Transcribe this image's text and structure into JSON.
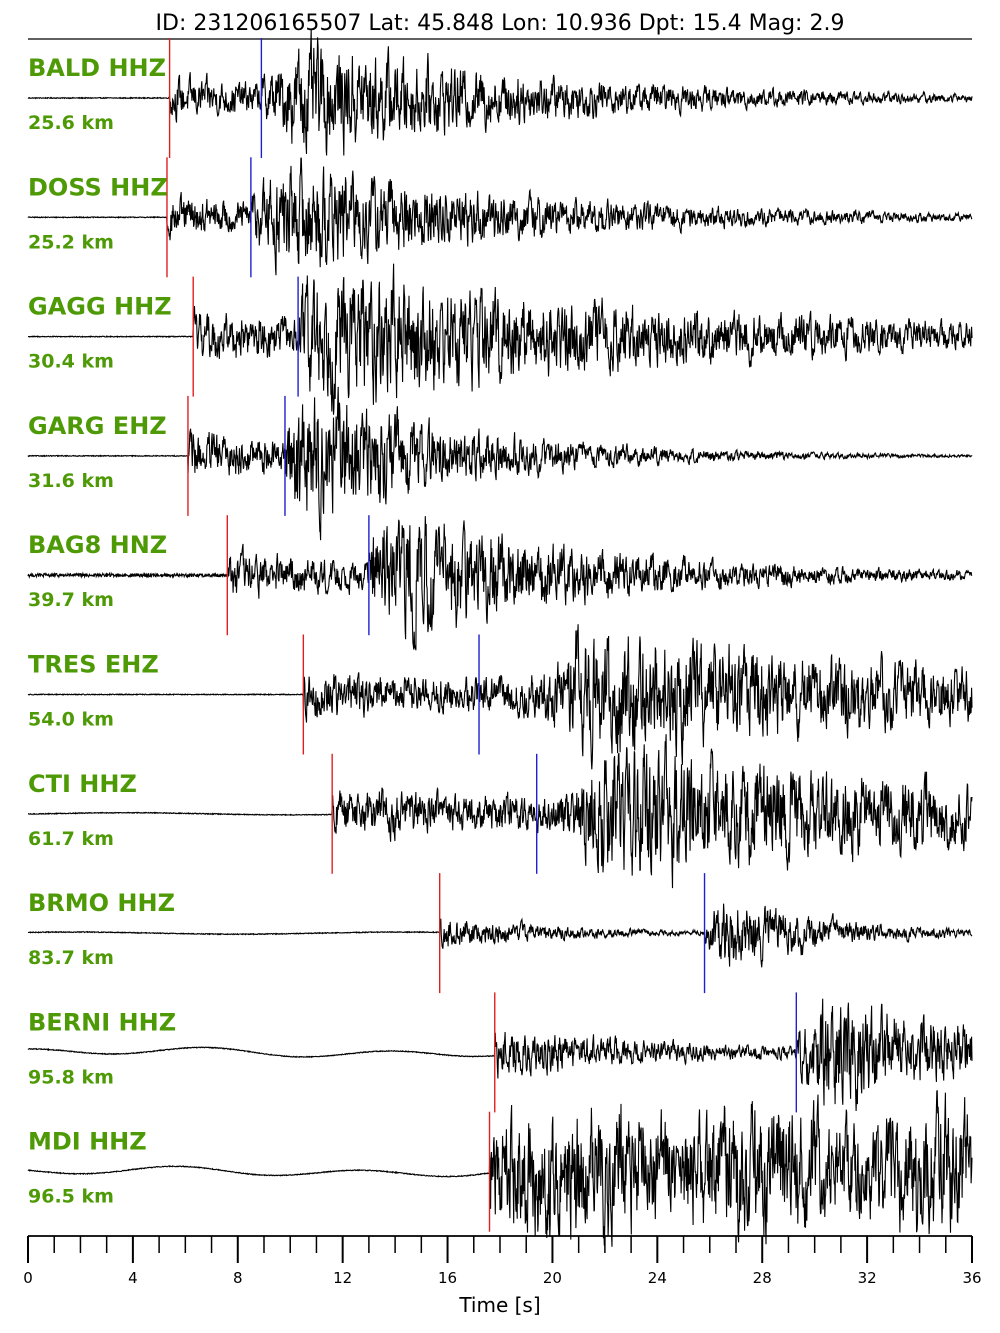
{
  "chart_data": {
    "type": "line",
    "title": "ID: 231206165507 Lat:  45.848 Lon:  10.936 Dpt:    15.4 Mag:   2.9",
    "xlabel": "Time [s]",
    "ylabel": "",
    "xlim": [
      0,
      36
    ],
    "x_ticks": [
      "0",
      "4",
      "8",
      "12",
      "16",
      "20",
      "24",
      "28",
      "32",
      "36"
    ],
    "minor_tick_step": 1,
    "grid": false,
    "pick_colors": {
      "p": "#e02020",
      "s": "#2020d0"
    },
    "trace_color": "#000000",
    "label_color": "#4e9a06",
    "stations": [
      {
        "name": "BALD HHZ",
        "distance": "25.6 km",
        "p_pick": 5.4,
        "s_pick": 8.9,
        "pre_amp": 0.02,
        "amp": 0.35,
        "peak": 10.4,
        "decay": 9,
        "noise": "quiet"
      },
      {
        "name": "DOSS HHZ",
        "distance": "25.2 km",
        "p_pick": 5.3,
        "s_pick": 8.5,
        "pre_amp": 0.02,
        "amp": 0.34,
        "peak": 9.6,
        "decay": 9,
        "noise": "quiet"
      },
      {
        "name": "GAGG HHZ",
        "distance": "30.4 km",
        "p_pick": 6.3,
        "s_pick": 10.3,
        "pre_amp": 0.02,
        "amp": 0.4,
        "peak": 11.0,
        "decay": 14,
        "noise": "quiet"
      },
      {
        "name": "GARG EHZ",
        "distance": "31.6 km",
        "p_pick": 6.1,
        "s_pick": 9.8,
        "pre_amp": 0.02,
        "amp": 0.42,
        "peak": 10.6,
        "decay": 6,
        "noise": "quiet"
      },
      {
        "name": "BAG8 HNZ",
        "distance": "39.7 km",
        "p_pick": 7.6,
        "s_pick": 13.0,
        "pre_amp": 0.02,
        "amp": 0.4,
        "peak": 13.6,
        "decay": 8,
        "noise": "fuzzy"
      },
      {
        "name": "TRES EHZ",
        "distance": "54.0 km",
        "p_pick": 10.5,
        "s_pick": 17.2,
        "pre_amp": 0.03,
        "amp": 0.4,
        "peak": 21.0,
        "decay": 16,
        "noise": "quiet"
      },
      {
        "name": "CTI HHZ",
        "distance": "61.7 km",
        "p_pick": 11.6,
        "s_pick": 19.4,
        "pre_amp": 0.04,
        "amp": 0.42,
        "peak": 22.0,
        "decay": 16,
        "noise": "slow"
      },
      {
        "name": "BRMO HHZ",
        "distance": "83.7 km",
        "p_pick": 15.7,
        "s_pick": 25.8,
        "pre_amp": 0.04,
        "amp": 0.28,
        "peak": 26.6,
        "decay": 4,
        "noise": "slow"
      },
      {
        "name": "BERNI HHZ",
        "distance": "95.8 km",
        "p_pick": 17.8,
        "s_pick": 29.3,
        "pre_amp": 0.06,
        "amp": 0.42,
        "peak": 30.3,
        "decay": 6,
        "noise": "wave"
      },
      {
        "name": "MDI HHZ",
        "distance": "96.5 km",
        "p_pick": 17.6,
        "s_pick": null,
        "pre_amp": 0.05,
        "amp": 0.42,
        "peak": 34.5,
        "decay": 30,
        "noise": "wave"
      }
    ]
  }
}
